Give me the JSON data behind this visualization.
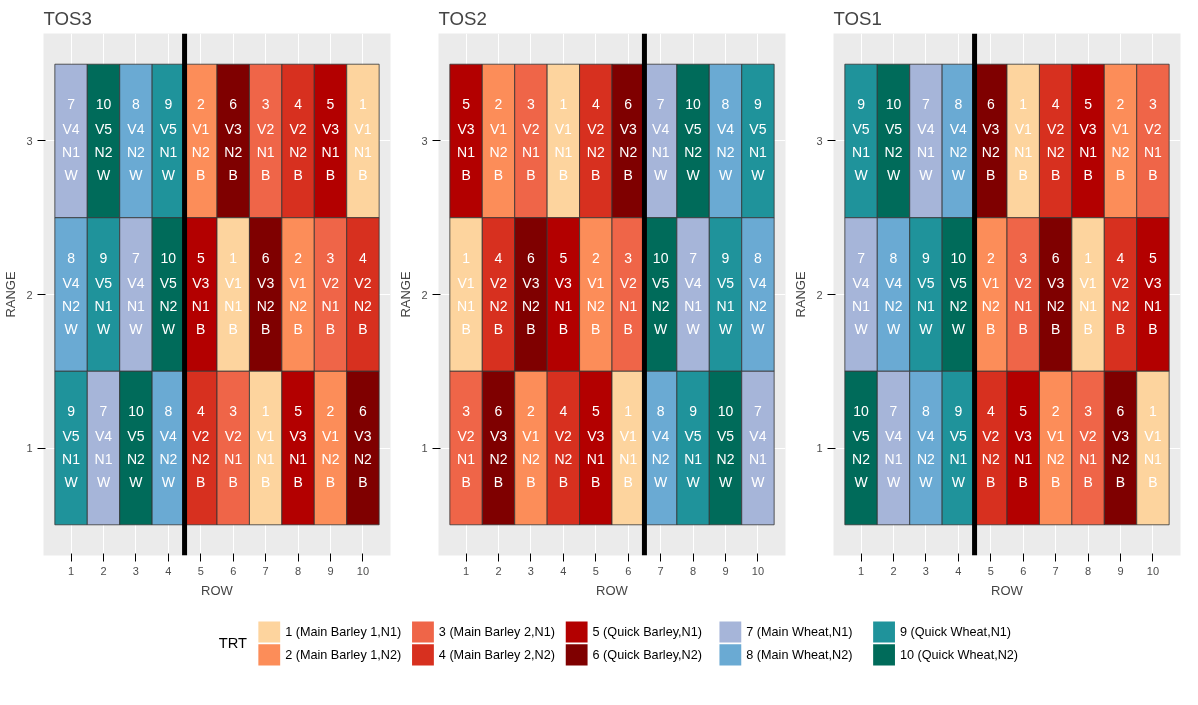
{
  "chart_data": [
    {
      "type": "heatmap",
      "title": "TOS3",
      "xlabel": "ROW",
      "ylabel": "RANGE",
      "x": [
        1,
        2,
        3,
        4,
        5,
        6,
        7,
        8,
        9,
        10
      ],
      "xlim": [
        0.15,
        10.85
      ],
      "xticks": [
        1,
        2,
        3,
        4,
        5,
        6,
        7,
        8,
        9,
        10
      ],
      "y_categories": [
        "3",
        "2",
        "1"
      ],
      "cells": [
        [
          7,
          10,
          8,
          9,
          2,
          6,
          3,
          4,
          5,
          1
        ],
        [
          8,
          9,
          7,
          10,
          5,
          1,
          6,
          2,
          3,
          4
        ],
        [
          9,
          7,
          10,
          8,
          4,
          3,
          1,
          5,
          2,
          6
        ]
      ],
      "data_labels": true,
      "annotations": [
        "V4\nN1\nW",
        "V5\nN2\nW",
        "V4\nN2\nW",
        "V5\nN1\nW",
        "V1\nN2\nB",
        "V3\nN2\nB",
        "V2\nN1\nB",
        "V2\nN2\nB",
        "V3\nN1\nB",
        "V1\nN1\nB",
        "V4\nN2\nW",
        "V5\nN1\nW",
        "V4\nN1\nW",
        "V5\nN2\nW",
        "V3\nN1\nB",
        "V1\nN1\nB",
        "V3\nN2\nB",
        "V1\nN2\nB",
        "V2\nN1\nB",
        "V2\nN2\nB",
        "V5\nN1\nW",
        "V4\nN1\nW",
        "V5\nN2\nW",
        "V4\nN2\nW",
        "V2\nN2\nB",
        "V2\nN1\nB",
        "V1\nN1\nB",
        "V3\nN1\nB",
        "V1\nN2\nB",
        "V3\nN2\nB"
      ],
      "ref_lines": [
        {
          "axis": "x",
          "value": 4.5,
          "color": "#000000"
        }
      ],
      "grid": true
    },
    {
      "type": "heatmap",
      "title": "TOS2",
      "xlabel": "ROW",
      "ylabel": "RANGE",
      "x": [
        1,
        2,
        3,
        4,
        5,
        6,
        7,
        8,
        9,
        10
      ],
      "xlim": [
        0.15,
        10.85
      ],
      "xticks": [
        1,
        2,
        3,
        4,
        5,
        6,
        7,
        8,
        9,
        10
      ],
      "y_categories": [
        "3",
        "2",
        "1"
      ],
      "cells": [
        [
          5,
          2,
          3,
          1,
          4,
          6,
          7,
          10,
          8,
          9
        ],
        [
          1,
          4,
          6,
          5,
          2,
          3,
          10,
          7,
          9,
          8
        ],
        [
          3,
          6,
          2,
          4,
          5,
          1,
          8,
          9,
          10,
          7
        ]
      ],
      "data_labels": true,
      "annotations": [
        "V3\nN1\nB",
        "V1\nN2\nB",
        "V2\nN1\nB",
        "V1\nN1\nB",
        "V2\nN2\nB",
        "V3\nN2\nB",
        "V4\nN1\nW",
        "V5\nN2\nW",
        "V4\nN2\nW",
        "V5\nN1\nW",
        "V1\nN1\nB",
        "V2\nN2\nB",
        "V3\nN2\nB",
        "V3\nN1\nB",
        "V1\nN2\nB",
        "V2\nN1\nB",
        "V5\nN2\nW",
        "V4\nN1\nW",
        "V5\nN1\nW",
        "V4\nN2\nW",
        "V2\nN1\nB",
        "V3\nN2\nB",
        "V1\nN2\nB",
        "V2\nN2\nB",
        "V3\nN1\nB",
        "V1\nN1\nB",
        "V4\nN2\nW",
        "V5\nN1\nW",
        "V5\nN2\nW",
        "V4\nN1\nW"
      ],
      "ref_lines": [
        {
          "axis": "x",
          "value": 6.5,
          "color": "#000000"
        }
      ],
      "grid": true
    },
    {
      "type": "heatmap",
      "title": "TOS1",
      "xlabel": "ROW",
      "ylabel": "RANGE",
      "x": [
        1,
        2,
        3,
        4,
        5,
        6,
        7,
        8,
        9,
        10
      ],
      "xlim": [
        0.15,
        10.85
      ],
      "xticks": [
        1,
        2,
        3,
        4,
        5,
        6,
        7,
        8,
        9,
        10
      ],
      "y_categories": [
        "3",
        "2",
        "1"
      ],
      "cells": [
        [
          9,
          10,
          7,
          8,
          6,
          1,
          4,
          5,
          2,
          3
        ],
        [
          7,
          8,
          9,
          10,
          2,
          3,
          6,
          1,
          4,
          5
        ],
        [
          10,
          7,
          8,
          9,
          4,
          5,
          2,
          3,
          6,
          1
        ]
      ],
      "data_labels": true,
      "annotations": [
        "V5\nN1\nW",
        "V5\nN2\nW",
        "V4\nN1\nW",
        "V4\nN2\nW",
        "V3\nN2\nB",
        "V1\nN1\nB",
        "V2\nN2\nB",
        "V3\nN1\nB",
        "V1\nN2\nB",
        "V2\nN1\nB",
        "V4\nN1\nW",
        "V4\nN2\nW",
        "V5\nN1\nW",
        "V5\nN2\nW",
        "V1\nN2\nB",
        "V2\nN1\nB",
        "V3\nN2\nB",
        "V1\nN1\nB",
        "V2\nN2\nB",
        "V3\nN1\nB",
        "V5\nN2\nW",
        "V4\nN1\nW",
        "V4\nN2\nW",
        "V5\nN1\nW",
        "V2\nN2\nB",
        "V3\nN1\nB",
        "V1\nN2\nB",
        "V2\nN1\nB",
        "V3\nN2\nB",
        "V1\nN1\nB"
      ],
      "ref_lines": [
        {
          "axis": "x",
          "value": 4.5,
          "color": "#000000"
        }
      ],
      "grid": true
    },
    {
      "type": "other",
      "legend_title": "TRT",
      "categories": [
        "1 (Main Barley 1,N1)",
        "2 (Main Barley 1,N2)",
        "3 (Main Barley 2,N1)",
        "4 (Main Barley 2,N2)",
        "5 (Quick Barley,N1)",
        "6 (Quick Barley,N2)",
        "7 (Main Wheat,N1)",
        "8 (Main Wheat,N2)",
        "9 (Quick Wheat,N1)",
        "10 (Quick Wheat,N2)"
      ],
      "colors": [
        "#fdd49e",
        "#fc8d59",
        "#ef6548",
        "#d7301f",
        "#b30000",
        "#7f0000",
        "#a6b5d9",
        "#6aaad3",
        "#1f939b",
        "#006b5a"
      ]
    }
  ]
}
